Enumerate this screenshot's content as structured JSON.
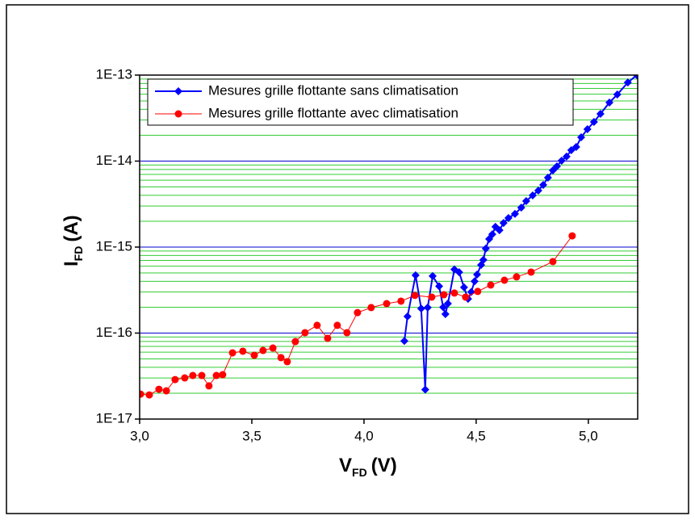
{
  "chart_data": {
    "type": "line",
    "xlabel": {
      "main": "V",
      "sub": "FD",
      "unit": "(V)"
    },
    "ylabel": {
      "main": "I",
      "sub": "FD",
      "unit": "(A)"
    },
    "xlim": [
      3.0,
      5.22
    ],
    "xticks": [
      {
        "value": 3.0,
        "label": "3,0"
      },
      {
        "value": 3.5,
        "label": "3,5"
      },
      {
        "value": 4.0,
        "label": "4,0"
      },
      {
        "value": 4.5,
        "label": "4,5"
      },
      {
        "value": 5.0,
        "label": "5,0"
      }
    ],
    "ylim": [
      1e-17,
      1e-13
    ],
    "log_y": true,
    "yticks": [
      {
        "value": 1e-17,
        "label": "1E-17"
      },
      {
        "value": 1e-16,
        "label": "1E-16"
      },
      {
        "value": 1e-15,
        "label": "1E-15"
      },
      {
        "value": 1e-14,
        "label": "1E-14"
      },
      {
        "value": 1e-13,
        "label": "1E-13"
      }
    ],
    "yminorticks": [
      2e-17,
      3e-17,
      4e-17,
      5e-17,
      6e-17,
      7e-17,
      8e-17,
      9e-17,
      2e-16,
      3e-16,
      4e-16,
      5e-16,
      6e-16,
      7e-16,
      8e-16,
      9e-16,
      2e-15,
      3e-15,
      4e-15,
      5e-15,
      6e-15,
      7e-15,
      8e-15,
      9e-15,
      2e-14,
      3e-14,
      4e-14,
      5e-14,
      6e-14,
      7e-14,
      8e-14,
      9e-14
    ],
    "grid": true,
    "grid_color": "#0000cc",
    "minor_grid_color": "#33cc33",
    "legend": "upper left",
    "series": [
      {
        "name": "Mesures grille flottante sans climatisation",
        "color": "#0000ff",
        "marker": "diamond",
        "x": [
          4.18,
          4.194,
          4.23,
          4.255,
          4.273,
          4.284,
          4.306,
          4.335,
          4.353,
          4.363,
          4.374,
          4.403,
          4.424,
          4.446,
          4.464,
          4.478,
          4.493,
          4.504,
          4.522,
          4.532,
          4.543,
          4.558,
          4.572,
          4.586,
          4.604,
          4.622,
          4.644,
          4.673,
          4.701,
          4.723,
          4.752,
          4.777,
          4.799,
          4.82,
          4.842,
          4.86,
          4.881,
          4.903,
          4.924,
          4.946,
          4.968,
          4.996,
          5.025,
          5.054,
          5.094,
          5.129,
          5.176,
          5.216
        ],
        "values": [
          8.1e-17,
          1.56e-16,
          4.7e-16,
          1.93e-16,
          2.2e-17,
          1.98e-16,
          4.6e-16,
          3.5e-16,
          2e-16,
          1.66e-16,
          2.2e-16,
          5.5e-16,
          5.1e-16,
          3.4e-16,
          2.5e-16,
          3e-16,
          4e-16,
          4.8e-16,
          6.2e-16,
          7.1e-16,
          9.6e-16,
          1.24e-15,
          1.41e-15,
          1.72e-15,
          1.57e-15,
          1.91e-15,
          2.18e-15,
          2.43e-15,
          2.88e-15,
          3.43e-15,
          3.99e-15,
          4.54e-15,
          5.28e-15,
          6.42e-15,
          7.8e-15,
          8.69e-15,
          1.01e-14,
          1.13e-14,
          1.34e-14,
          1.46e-14,
          1.89e-14,
          2.35e-14,
          2.85e-14,
          3.54e-14,
          4.8e-14,
          5.95e-14,
          8.2e-14,
          1e-13
        ]
      },
      {
        "name": "Mesures grille flottante avec climatisation",
        "color": "#ff0000",
        "marker": "circle",
        "x": [
          3.004,
          3.043,
          3.086,
          3.119,
          3.158,
          3.201,
          3.237,
          3.277,
          3.309,
          3.342,
          3.37,
          3.414,
          3.46,
          3.511,
          3.55,
          3.594,
          3.63,
          3.658,
          3.694,
          3.737,
          3.791,
          3.838,
          3.881,
          3.924,
          3.971,
          4.032,
          4.101,
          4.165,
          4.227,
          4.302,
          4.356,
          4.403,
          4.453,
          4.507,
          4.565,
          4.626,
          4.68,
          4.745,
          4.842,
          4.928
        ],
        "values": [
          1.95e-17,
          1.91e-17,
          2.22e-17,
          2.13e-17,
          2.88e-17,
          3.01e-17,
          3.21e-17,
          3.21e-17,
          2.43e-17,
          3.21e-17,
          3.28e-17,
          5.89e-17,
          6.15e-17,
          5.52e-17,
          6.28e-17,
          6.7e-17,
          5.18e-17,
          4.65e-17,
          7.96e-17,
          1.01e-16,
          1.23e-16,
          8.69e-17,
          1.23e-16,
          1.01e-16,
          1.73e-16,
          1.98e-16,
          2.2e-16,
          2.35e-16,
          2.74e-16,
          2.62e-16,
          2.79e-16,
          2.92e-16,
          2.62e-16,
          3.05e-16,
          3.62e-16,
          4.12e-16,
          4.5e-16,
          5.12e-16,
          6.78e-16,
          1.35e-15
        ]
      }
    ]
  }
}
